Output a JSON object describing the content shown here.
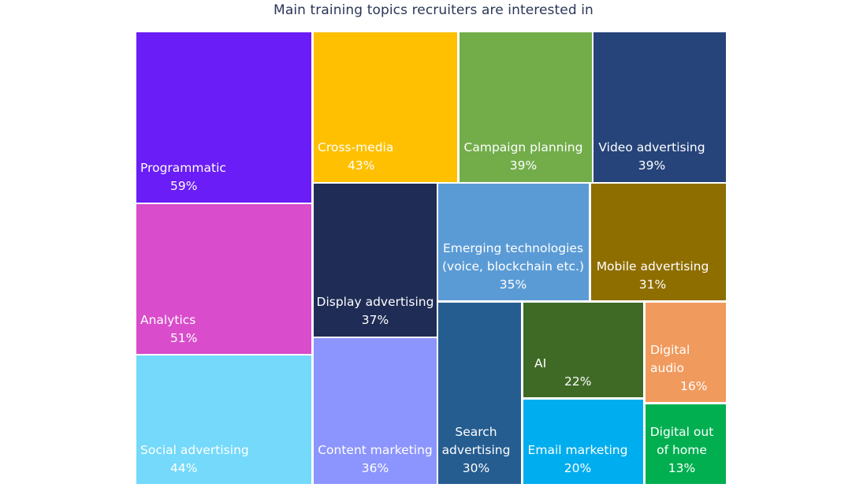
{
  "chart_data": {
    "type": "treemap",
    "title": "Main training topics recruiters are interested in",
    "unit": "%",
    "items": [
      {
        "name": "Programmatic",
        "lines": [
          "Programmatic"
        ],
        "value": 59,
        "value_label": "59%",
        "color": "#6a1df6"
      },
      {
        "name": "Analytics",
        "lines": [
          "Analytics"
        ],
        "value": 51,
        "value_label": "51%",
        "color": "#d94ccb"
      },
      {
        "name": "Social advertising",
        "lines": [
          "Social advertising"
        ],
        "value": 44,
        "value_label": "44%",
        "color": "#74d9fa"
      },
      {
        "name": "Cross-media",
        "lines": [
          "Cross-media"
        ],
        "value": 43,
        "value_label": "43%",
        "color": "#fec000"
      },
      {
        "name": "Campaign planning",
        "lines": [
          "Campaign planning"
        ],
        "value": 39,
        "value_label": "39%",
        "color": "#72ad4a"
      },
      {
        "name": "Video advertising",
        "lines": [
          "Video advertising"
        ],
        "value": 39,
        "value_label": "39%",
        "color": "#26447a"
      },
      {
        "name": "Display advertising",
        "lines": [
          "Display advertising"
        ],
        "value": 37,
        "value_label": "37%",
        "color": "#1f2d56"
      },
      {
        "name": "Content marketing",
        "lines": [
          "Content marketing"
        ],
        "value": 36,
        "value_label": "36%",
        "color": "#8c95fd"
      },
      {
        "name": "Emerging technologies (voice, blockchain etc.)",
        "lines": [
          "Emerging technologies",
          "(voice, blockchain etc.)"
        ],
        "value": 35,
        "value_label": "35%",
        "color": "#5b9bd5"
      },
      {
        "name": "Mobile advertising",
        "lines": [
          "Mobile advertising"
        ],
        "value": 31,
        "value_label": "31%",
        "color": "#8f6e00"
      },
      {
        "name": "Search advertising",
        "lines": [
          "Search",
          "advertising"
        ],
        "value": 30,
        "value_label": "30%",
        "color": "#265d90"
      },
      {
        "name": "AI",
        "lines": [
          "AI"
        ],
        "value": 22,
        "value_label": "22%",
        "color": "#3f6a26"
      },
      {
        "name": "Email marketing",
        "lines": [
          "Email marketing"
        ],
        "value": 20,
        "value_label": "20%",
        "color": "#00adee"
      },
      {
        "name": "Digital audio",
        "lines": [
          "Digital",
          "audio"
        ],
        "value": 16,
        "value_label": "16%",
        "color": "#f19a5d"
      },
      {
        "name": "Digital out of home",
        "lines": [
          "Digital out",
          "of home"
        ],
        "value": 13,
        "value_label": "13%",
        "color": "#01af50"
      }
    ]
  }
}
